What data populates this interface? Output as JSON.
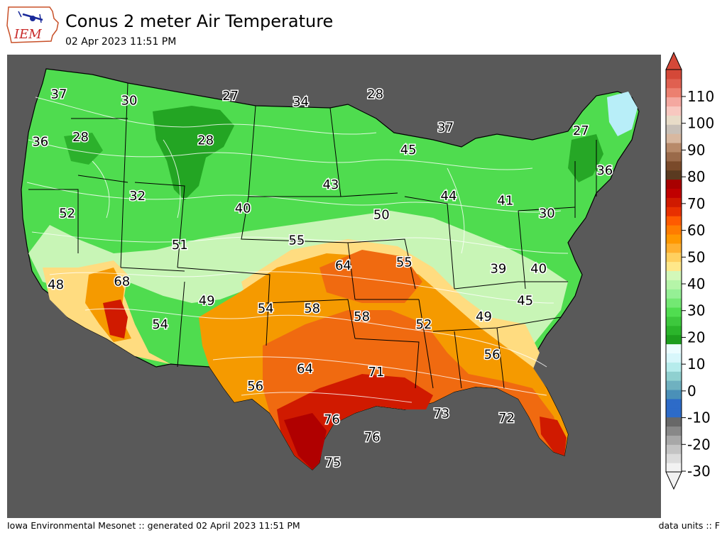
{
  "header": {
    "title": "Conus 2 meter Air Temperature",
    "subtitle": "02 Apr 2023 11:51 PM",
    "logo_text": "IEM"
  },
  "footer": {
    "left": "Iowa Environmental Mesonet :: generated 02 April 2023 11:51 PM",
    "right": "data units :: F"
  },
  "colors": {
    "ocean": "#595959",
    "border": "#000000",
    "contour": "#ffffff",
    "cold_green": "#1e9e1e",
    "green": "#3fd53f",
    "light_green": "#bff5b0",
    "yellow": "#fde08a",
    "orange": "#f59a00",
    "red_orange": "#f06a10",
    "red": "#d01a00",
    "dark_red": "#b00000",
    "pale_blue": "#b8eef8"
  },
  "colorbar": {
    "ticks": [
      "110",
      "100",
      "90",
      "80",
      "70",
      "60",
      "50",
      "40",
      "30",
      "20",
      "10",
      "0",
      "-10",
      "-20",
      "-30"
    ],
    "bins": [
      "#f2f2f2",
      "#dcdcdc",
      "#c4c4c4",
      "#a8a8a8",
      "#888888",
      "#686868",
      "#2d6bc8",
      "#2d6bc8",
      "#4a90b8",
      "#6fb1c0",
      "#8fd0d0",
      "#b6ecec",
      "#d8f7fb",
      "#ecfdff",
      "#1e9e1e",
      "#2bb52b",
      "#3dc83d",
      "#50dd50",
      "#73e873",
      "#95f095",
      "#b5f5a8",
      "#d3f8b9",
      "#ffe88a",
      "#ffd060",
      "#ffb030",
      "#ff9800",
      "#ff7c00",
      "#ff5a00",
      "#e83000",
      "#d01a00",
      "#c00000",
      "#a80000",
      "#5a3a20",
      "#7a4a2a",
      "#9a6a4a",
      "#b88a6a",
      "#d8b8a0",
      "#c8c0b8",
      "#e8dcc8",
      "#f8c8c0",
      "#f4a8a0",
      "#ec8070",
      "#e06050",
      "#d44838"
    ]
  },
  "map_labels": [
    {
      "text": "37",
      "lon": -123.0,
      "lat": 48.0
    },
    {
      "text": "30",
      "lon": -116.2,
      "lat": 47.6
    },
    {
      "text": "27",
      "lon": -106.4,
      "lat": 47.9
    },
    {
      "text": "34",
      "lon": -99.6,
      "lat": 47.5
    },
    {
      "text": "28",
      "lon": -92.4,
      "lat": 48.0
    },
    {
      "text": "37",
      "lon": -85.6,
      "lat": 45.9
    },
    {
      "text": "27",
      "lon": -72.5,
      "lat": 45.7
    },
    {
      "text": "36",
      "lon": -70.2,
      "lat": 43.2
    },
    {
      "text": "36",
      "lon": -124.8,
      "lat": 45.0
    },
    {
      "text": "28",
      "lon": -120.9,
      "lat": 45.3
    },
    {
      "text": "28",
      "lon": -108.8,
      "lat": 45.1
    },
    {
      "text": "45",
      "lon": -89.2,
      "lat": 44.5
    },
    {
      "text": "43",
      "lon": -96.7,
      "lat": 42.3
    },
    {
      "text": "32",
      "lon": -115.4,
      "lat": 41.6
    },
    {
      "text": "40",
      "lon": -105.2,
      "lat": 40.8
    },
    {
      "text": "52",
      "lon": -122.2,
      "lat": 40.5
    },
    {
      "text": "44",
      "lon": -85.3,
      "lat": 41.6
    },
    {
      "text": "41",
      "lon": -79.8,
      "lat": 41.3
    },
    {
      "text": "30",
      "lon": -75.8,
      "lat": 40.5
    },
    {
      "text": "50",
      "lon": -91.8,
      "lat": 40.4
    },
    {
      "text": "55",
      "lon": -100.0,
      "lat": 38.8
    },
    {
      "text": "51",
      "lon": -111.3,
      "lat": 38.5
    },
    {
      "text": "64",
      "lon": -95.5,
      "lat": 37.2
    },
    {
      "text": "55",
      "lon": -89.6,
      "lat": 37.4
    },
    {
      "text": "39",
      "lon": -80.5,
      "lat": 37.0
    },
    {
      "text": "40",
      "lon": -76.6,
      "lat": 37.0
    },
    {
      "text": "48",
      "lon": -123.3,
      "lat": 36.0
    },
    {
      "text": "68",
      "lon": -116.9,
      "lat": 36.2
    },
    {
      "text": "49",
      "lon": -108.7,
      "lat": 35.0
    },
    {
      "text": "54",
      "lon": -103.0,
      "lat": 34.5
    },
    {
      "text": "58",
      "lon": -98.5,
      "lat": 34.5
    },
    {
      "text": "58",
      "lon": -93.7,
      "lat": 34.0
    },
    {
      "text": "52",
      "lon": -87.7,
      "lat": 33.5
    },
    {
      "text": "49",
      "lon": -81.9,
      "lat": 34.0
    },
    {
      "text": "45",
      "lon": -77.9,
      "lat": 35.0
    },
    {
      "text": "54",
      "lon": -113.2,
      "lat": 33.5
    },
    {
      "text": "56",
      "lon": -81.1,
      "lat": 31.6
    },
    {
      "text": "64",
      "lon": -99.2,
      "lat": 30.7
    },
    {
      "text": "71",
      "lon": -92.3,
      "lat": 30.5
    },
    {
      "text": "56",
      "lon": -104.0,
      "lat": 29.6
    },
    {
      "text": "76",
      "lon": -96.6,
      "lat": 27.5
    },
    {
      "text": "73",
      "lon": -86.0,
      "lat": 27.9
    },
    {
      "text": "72",
      "lon": -79.7,
      "lat": 27.6
    },
    {
      "text": "76",
      "lon": -92.7,
      "lat": 26.4
    },
    {
      "text": "75",
      "lon": -96.5,
      "lat": 24.8
    }
  ]
}
